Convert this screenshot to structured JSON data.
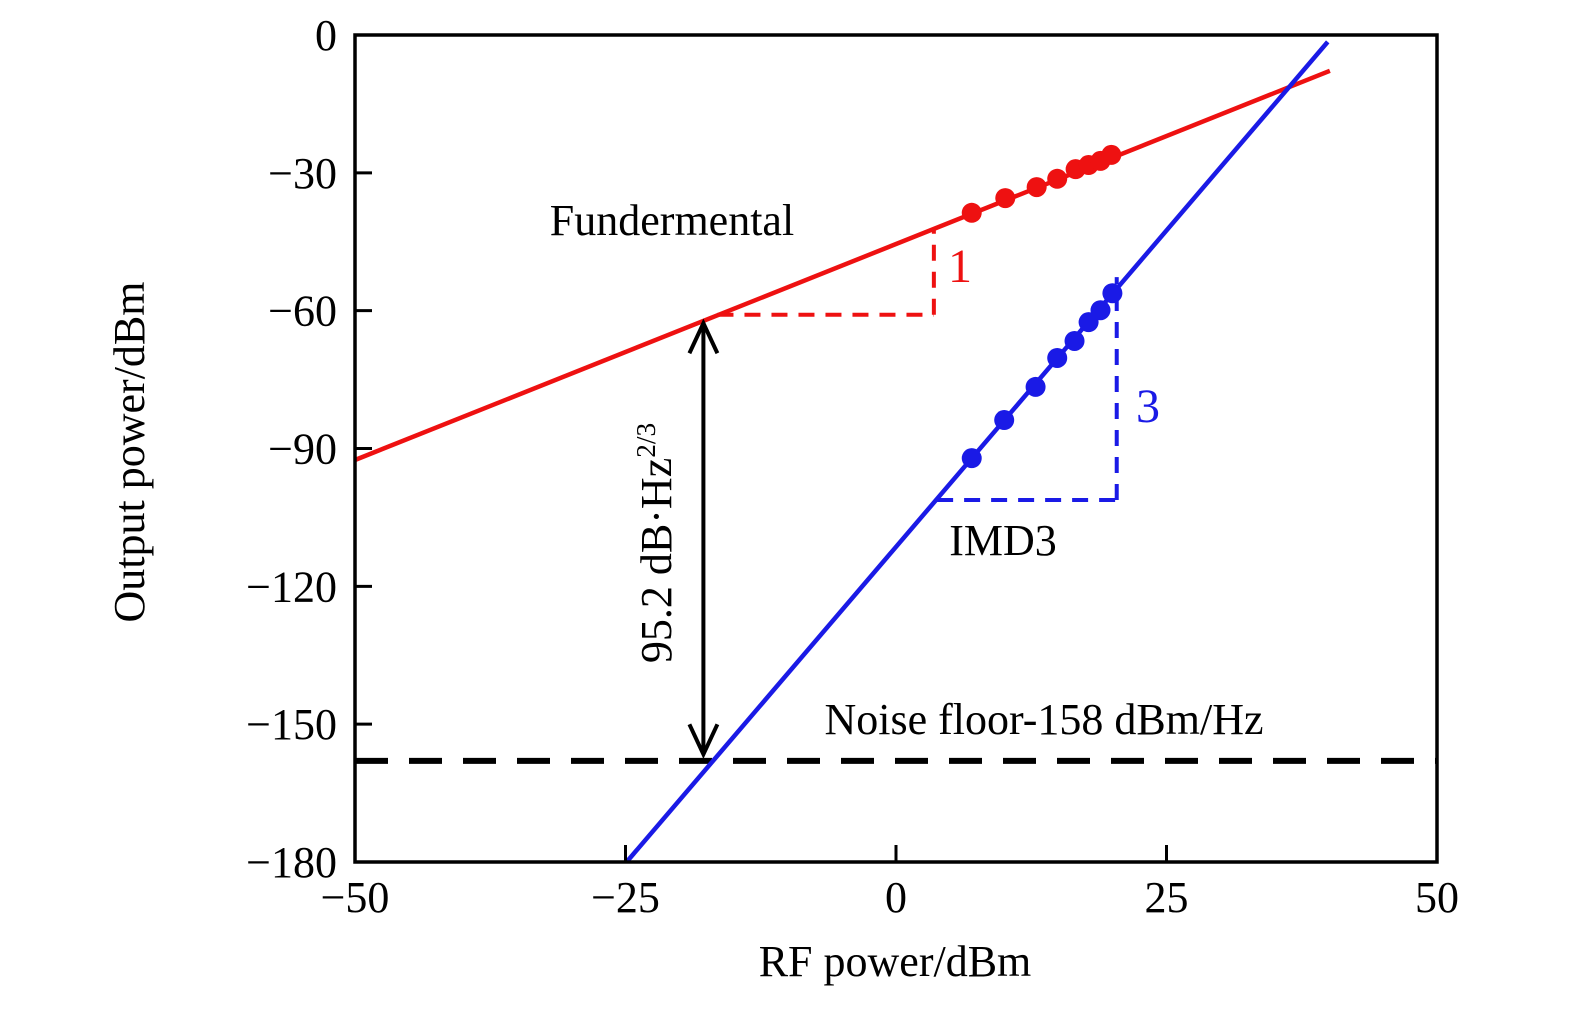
{
  "chart_data": {
    "type": "line",
    "title": "",
    "xlabel": "RF power/dBm",
    "ylabel": "Output power/dBm",
    "xlim": [
      -50,
      50
    ],
    "ylim": [
      -180,
      0
    ],
    "x_ticks": [
      -50,
      -25,
      0,
      25,
      50
    ],
    "y_ticks": [
      0,
      -30,
      -60,
      -90,
      -120,
      -150,
      -180
    ],
    "grid": false,
    "legend_position": "inline-labels",
    "colors": {
      "fundamental": "#ee1111",
      "imd3": "#1a1ae6",
      "noise_floor": "#000000",
      "axis": "#000000"
    },
    "series": [
      {
        "name": "Fundamental",
        "label": "Fundermental",
        "slope_label": "1",
        "color": "#ee1111",
        "line": {
          "x": [
            -50,
            40.1
          ],
          "y": [
            -92.5,
            -7.8
          ]
        },
        "points": {
          "x": [
            7.0,
            10.1,
            13.0,
            14.9,
            16.6,
            17.8,
            18.9,
            19.9
          ],
          "y": [
            -38.7,
            -35.5,
            -33.1,
            -31.3,
            -29.2,
            -28.3,
            -27.4,
            -26.1
          ]
        },
        "slope_triangle": {
          "hx": [
            -16.5,
            3.5
          ],
          "hy": -60.9,
          "vx": 3.5,
          "vy": [
            -60.9,
            -42.2
          ]
        }
      },
      {
        "name": "IMD3",
        "label": "IMD3",
        "slope_label": "3",
        "color": "#1a1ae6",
        "line": {
          "x": [
            -24.9,
            39.9
          ],
          "y": [
            -180,
            -1.5
          ]
        },
        "points": {
          "x": [
            7.0,
            10.0,
            12.9,
            14.9,
            16.5,
            17.8,
            18.9,
            20.0
          ],
          "y": [
            -92.1,
            -83.8,
            -76.6,
            -70.3,
            -66.6,
            -62.5,
            -59.9,
            -56.2
          ]
        },
        "slope_triangle": {
          "hx": [
            3.8,
            20.4
          ],
          "hy": -101.2,
          "vx": 20.4,
          "vy": [
            -101.2,
            -52.7
          ]
        }
      }
    ],
    "noise_floor": {
      "label": "Noise floor-158 dBm/Hz",
      "y": -158
    },
    "sfdr_arrow": {
      "label_main": "95.2 dB·Hz",
      "label_sup": "2/3",
      "x": -17.8,
      "y_top": -62.3,
      "y_bottom": -157.0
    }
  }
}
